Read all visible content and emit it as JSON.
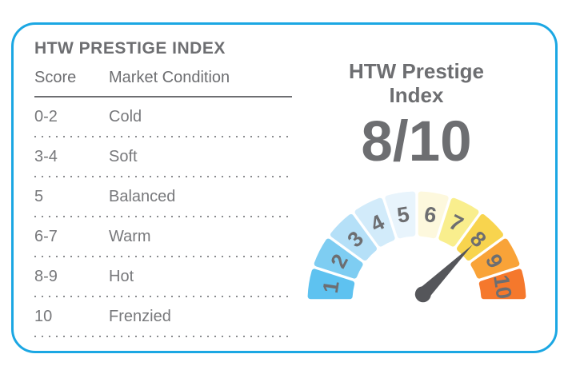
{
  "card": {
    "title": "HTW PRESTIGE INDEX",
    "table": {
      "headers": [
        "Score",
        "Market Condition"
      ],
      "rows": [
        {
          "score": "0-2",
          "condition": "Cold"
        },
        {
          "score": "3-4",
          "condition": "Soft"
        },
        {
          "score": "5",
          "condition": "Balanced"
        },
        {
          "score": "6-7",
          "condition": "Warm"
        },
        {
          "score": "8-9",
          "condition": "Hot"
        },
        {
          "score": "10",
          "condition": "Frenzied"
        }
      ]
    },
    "gauge_panel": {
      "heading_line1": "HTW Prestige",
      "heading_line2": "Index",
      "score_display": "8/10"
    }
  },
  "chart_data": {
    "type": "gauge",
    "title": "HTW Prestige Index",
    "value": 8,
    "min": 1,
    "max": 10,
    "value_display": "8/10",
    "segments": [
      {
        "label": "1",
        "color": "#5ec2f0"
      },
      {
        "label": "2",
        "color": "#7ecdf2"
      },
      {
        "label": "3",
        "color": "#b5e0f8"
      },
      {
        "label": "4",
        "color": "#d2ebfa"
      },
      {
        "label": "5",
        "color": "#e8f4fc"
      },
      {
        "label": "6",
        "color": "#fdf8dd"
      },
      {
        "label": "7",
        "color": "#f9ee8d"
      },
      {
        "label": "8",
        "color": "#f8d44e"
      },
      {
        "label": "9",
        "color": "#f9a338"
      },
      {
        "label": "10",
        "color": "#f5782c"
      }
    ],
    "needle_color": "#55565a",
    "label_color": "#6d6e71"
  },
  "colors": {
    "card_border": "#1ba7e3",
    "title_text": "#6d6e71",
    "row_text": "#77787b",
    "dotted_separator": "#8a8c8f"
  }
}
